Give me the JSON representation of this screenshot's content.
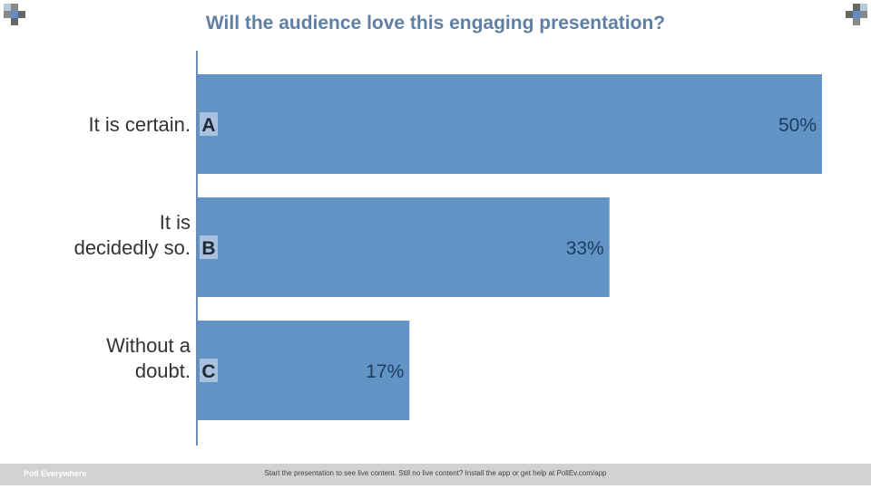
{
  "title": "Will the audience love this engaging presentation?",
  "footer": {
    "brand": "Poll Everywhere",
    "message": "Start the presentation to see live content. Still no live content? Install the app or get help at PollEv.com/app"
  },
  "colors": {
    "title": "#5f7fa5",
    "bar": "#6193c4",
    "bar_value_text": "#1e3c5e",
    "letter_badge": "#a9c1dc",
    "axis": "#6a8db5",
    "label_text": "#333333",
    "corner_dark": "#666666",
    "corner_mid": "#888888",
    "corner_light": "#b5c9df",
    "corner_blue": "#5f8fc4"
  },
  "chart_data": {
    "type": "bar",
    "orientation": "horizontal",
    "title": "Will the audience love this engaging presentation?",
    "categories": [
      "It is certain.",
      "It is decidedly so.",
      "Without a doubt."
    ],
    "category_label_lines": [
      [
        "It is certain."
      ],
      [
        "It is",
        "decidedly so."
      ],
      [
        "Without a",
        "doubt."
      ]
    ],
    "letters": [
      "A",
      "B",
      "C"
    ],
    "values": [
      50,
      33,
      17
    ],
    "value_labels": [
      "50%",
      "33%",
      "17%"
    ],
    "unit": "%",
    "xlim": [
      0,
      50
    ],
    "grid": false,
    "legend": "none"
  }
}
